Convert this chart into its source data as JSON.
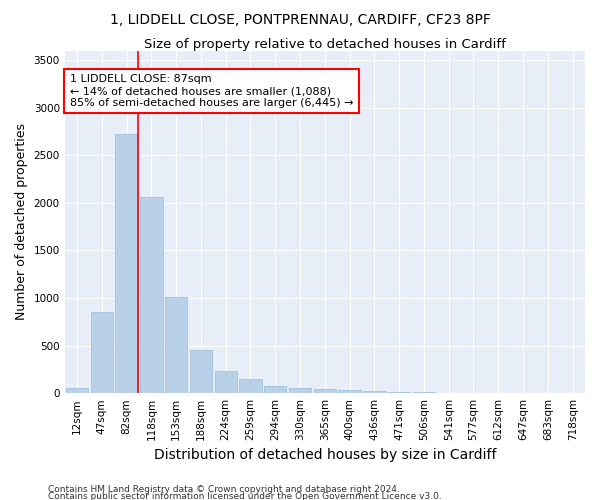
{
  "title_line1": "1, LIDDELL CLOSE, PONTPRENNAU, CARDIFF, CF23 8PF",
  "title_line2": "Size of property relative to detached houses in Cardiff",
  "xlabel": "Distribution of detached houses by size in Cardiff",
  "ylabel": "Number of detached properties",
  "categories": [
    "12sqm",
    "47sqm",
    "82sqm",
    "118sqm",
    "153sqm",
    "188sqm",
    "224sqm",
    "259sqm",
    "294sqm",
    "330sqm",
    "365sqm",
    "400sqm",
    "436sqm",
    "471sqm",
    "506sqm",
    "541sqm",
    "577sqm",
    "612sqm",
    "647sqm",
    "683sqm",
    "718sqm"
  ],
  "values": [
    55,
    850,
    2720,
    2060,
    1010,
    455,
    230,
    150,
    75,
    55,
    45,
    30,
    20,
    15,
    10,
    5,
    5,
    3,
    2,
    1,
    1
  ],
  "bar_color": "#b8d0e8",
  "bar_edge_color": "#8ab4d4",
  "vline_color": "red",
  "vline_x_index": 2,
  "annotation_text_line1": "1 LIDDELL CLOSE: 87sqm",
  "annotation_text_line2": "← 14% of detached houses are smaller (1,088)",
  "annotation_text_line3": "85% of semi-detached houses are larger (6,445) →",
  "annotation_box_facecolor": "white",
  "annotation_box_edgecolor": "red",
  "ylim": [
    0,
    3600
  ],
  "yticks": [
    0,
    500,
    1000,
    1500,
    2000,
    2500,
    3000,
    3500
  ],
  "bg_color": "#e8eef8",
  "grid_color": "#ffffff",
  "footer_line1": "Contains HM Land Registry data © Crown copyright and database right 2024.",
  "footer_line2": "Contains public sector information licensed under the Open Government Licence v3.0.",
  "title1_fontsize": 10,
  "title2_fontsize": 9.5,
  "axis_label_fontsize": 9,
  "tick_fontsize": 7.5,
  "annotation_fontsize": 8,
  "footer_fontsize": 6.5
}
